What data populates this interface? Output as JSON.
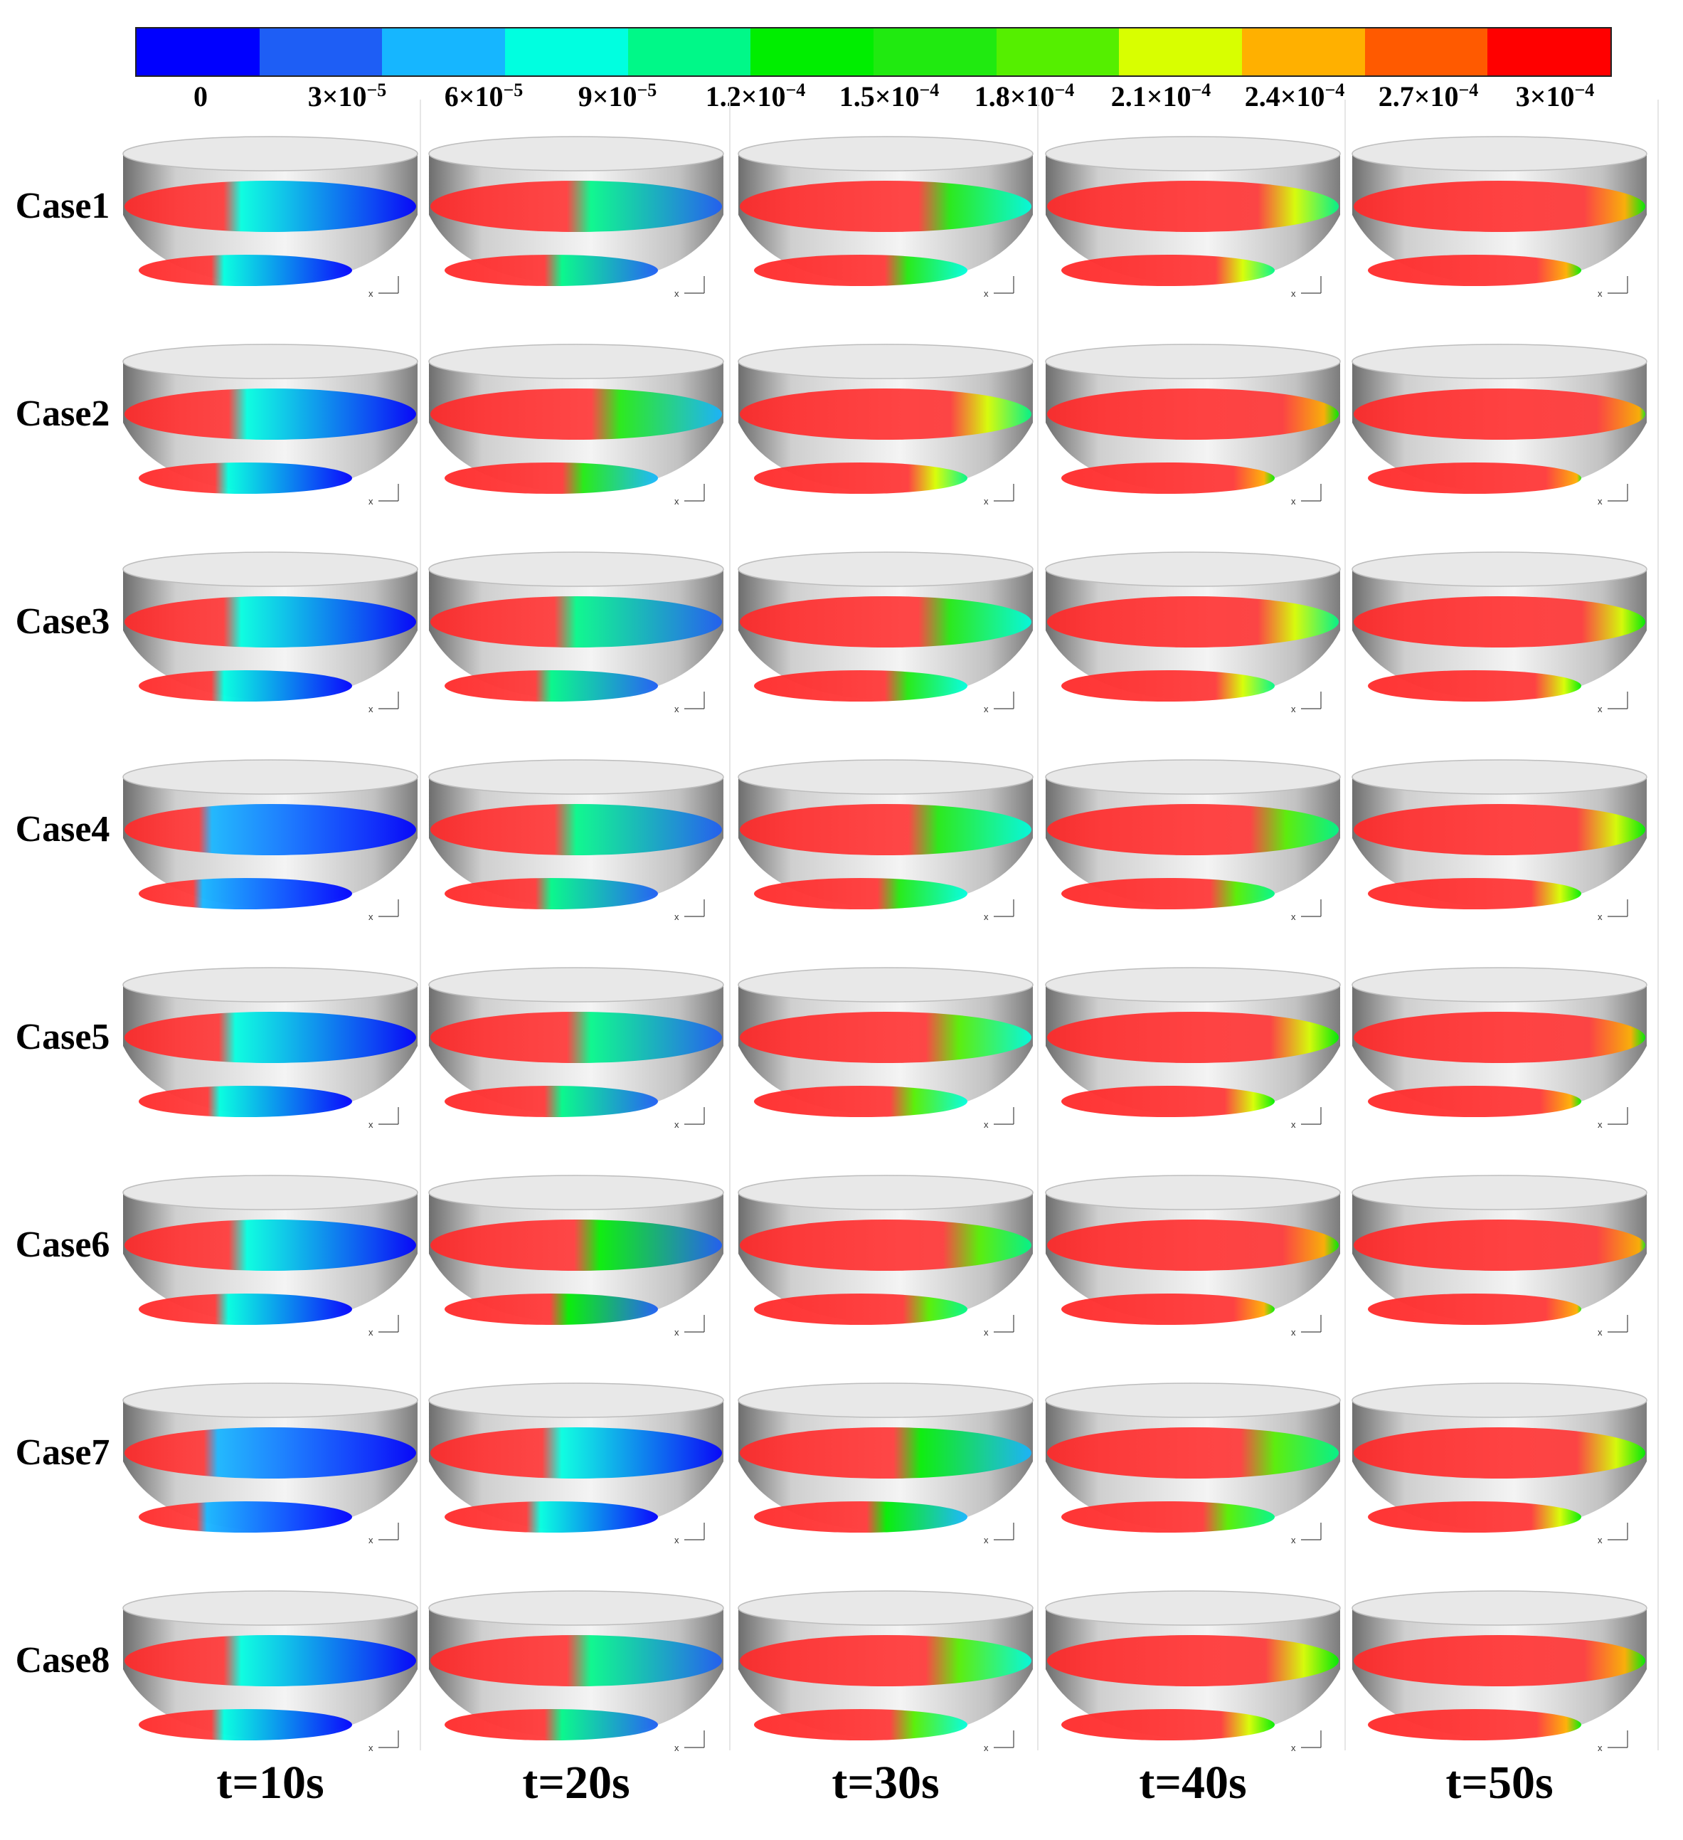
{
  "colorbar": {
    "colors": [
      "#0000ff",
      "#1e5ef5",
      "#16b6ff",
      "#00ffe0",
      "#00f888",
      "#00ee00",
      "#20ea10",
      "#55ef00",
      "#d8ff00",
      "#ffb000",
      "#ff5a00",
      "#ff0000"
    ],
    "ticks": [
      {
        "base": "0",
        "exp": ""
      },
      {
        "base": "3×10",
        "exp": "−5"
      },
      {
        "base": "6×10",
        "exp": "−5"
      },
      {
        "base": "9×10",
        "exp": "−5"
      },
      {
        "base": "1.2×10",
        "exp": "−4"
      },
      {
        "base": "1.5×10",
        "exp": "−4"
      },
      {
        "base": "1.8×10",
        "exp": "−4"
      },
      {
        "base": "2.1×10",
        "exp": "−4"
      },
      {
        "base": "2.4×10",
        "exp": "−4"
      },
      {
        "base": "2.7×10",
        "exp": "−4"
      },
      {
        "base": "3×10",
        "exp": "−4"
      }
    ]
  },
  "rows": [
    "Case1",
    "Case2",
    "Case3",
    "Case4",
    "Case5",
    "Case6",
    "Case7",
    "Case8"
  ],
  "columns": [
    "t=10s",
    "t=20s",
    "t=30s",
    "t=40s",
    "t=50s"
  ],
  "axis_label": "x",
  "fill_levels": [
    [
      0.4,
      0.55,
      0.72,
      0.85,
      0.93
    ],
    [
      0.42,
      0.65,
      0.85,
      0.95,
      1.0
    ],
    [
      0.4,
      0.5,
      0.72,
      0.85,
      0.92
    ],
    [
      0.3,
      0.5,
      0.68,
      0.82,
      0.9
    ],
    [
      0.38,
      0.55,
      0.75,
      0.9,
      0.95
    ],
    [
      0.42,
      0.58,
      0.82,
      0.95,
      1.0
    ],
    [
      0.32,
      0.45,
      0.62,
      0.78,
      0.9
    ],
    [
      0.4,
      0.55,
      0.75,
      0.88,
      0.93
    ]
  ]
}
